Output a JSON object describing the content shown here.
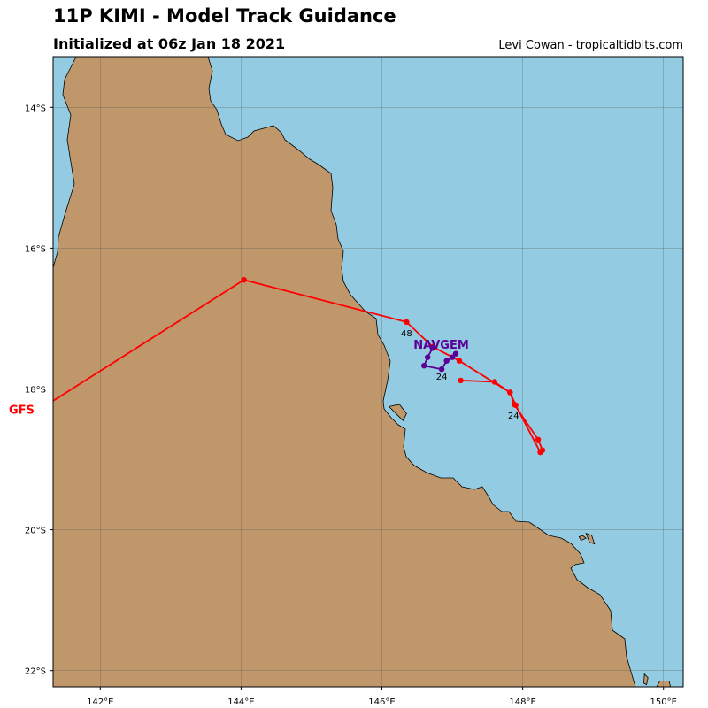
{
  "header": {
    "title": "11P KIMI - Model Track Guidance",
    "subtitle": "Initialized at 06z Jan 18 2021",
    "credit": "Levi Cowan - tropicaltidbits.com"
  },
  "map": {
    "lon_range": [
      141.33,
      150.28
    ],
    "lat_range": [
      -13.28,
      -22.23
    ],
    "lon_ticks": [
      142,
      144,
      146,
      148,
      150
    ],
    "lat_ticks": [
      -14,
      -16,
      -18,
      -20,
      -22
    ],
    "lon_tick_labels": [
      "142°E",
      "144°E",
      "146°E",
      "148°E",
      "150°E"
    ],
    "lat_tick_labels": [
      "14°S",
      "16°S",
      "18°S",
      "20°S",
      "22°S"
    ],
    "colors": {
      "ocean": "#93cce2",
      "land": "#c0976b",
      "coast": "#000000",
      "grid": "#555555"
    }
  },
  "tracks": [
    {
      "id": "gfs",
      "name": "GFS",
      "color": "#ff0000",
      "label_color": "#ff0000",
      "points": [
        [
          148.28,
          -18.87
        ],
        [
          148.22,
          -18.72
        ],
        [
          147.88,
          -18.22
        ],
        [
          147.82,
          -18.05
        ],
        [
          147.1,
          -17.6
        ],
        [
          146.72,
          -17.4
        ],
        [
          146.35,
          -17.05
        ],
        [
          144.04,
          -16.45
        ],
        [
          141.33,
          -18.17
        ]
      ]
    },
    {
      "id": "navgem",
      "name": "NAVGEM",
      "color": "#5a0096",
      "label_color": "#5a0096",
      "points": [
        [
          147.05,
          -17.5
        ],
        [
          147.0,
          -17.55
        ],
        [
          146.92,
          -17.6
        ],
        [
          146.85,
          -17.72
        ],
        [
          146.6,
          -17.67
        ],
        [
          146.65,
          -17.55
        ],
        [
          146.72,
          -17.42
        ]
      ]
    },
    {
      "id": "second",
      "name": "",
      "color": "#ff0000",
      "label_color": "#ff0000",
      "points": [
        [
          147.12,
          -17.88
        ],
        [
          147.6,
          -17.9
        ],
        [
          147.82,
          -18.05
        ],
        [
          147.9,
          -18.23
        ],
        [
          148.25,
          -18.9
        ]
      ]
    }
  ],
  "hour_labels": [
    {
      "text": "48",
      "lon": 146.35,
      "lat": -17.25
    },
    {
      "text": "24",
      "lon": 146.85,
      "lat": -17.87
    },
    {
      "text": "24",
      "lon": 147.87,
      "lat": -18.42
    }
  ],
  "model_labels": [
    {
      "text": "NAVGEM",
      "lon": 146.65,
      "lat": -17.43,
      "color": "#5a0096"
    },
    {
      "text": "GFS",
      "lon": 141.0,
      "lat": -18.35,
      "color": "#ff0000"
    }
  ],
  "islands": [
    {
      "name": "island",
      "points": [
        [
          146.1,
          -18.25
        ],
        [
          146.25,
          -18.22
        ],
        [
          146.35,
          -18.35
        ],
        [
          146.3,
          -18.45
        ],
        [
          146.2,
          -18.35
        ]
      ]
    },
    {
      "name": "island",
      "points": [
        [
          148.9,
          -20.05
        ],
        [
          148.98,
          -20.08
        ],
        [
          149.02,
          -20.2
        ],
        [
          148.95,
          -20.18
        ]
      ]
    },
    {
      "name": "island",
      "points": [
        [
          148.85,
          -20.08
        ],
        [
          148.9,
          -20.12
        ],
        [
          148.83,
          -20.15
        ],
        [
          148.8,
          -20.1
        ]
      ]
    },
    {
      "name": "island",
      "points": [
        [
          149.73,
          -22.05
        ],
        [
          149.78,
          -22.1
        ],
        [
          149.76,
          -22.2
        ],
        [
          149.72,
          -22.18
        ]
      ]
    },
    {
      "name": "island",
      "points": [
        [
          149.95,
          -22.15
        ],
        [
          150.08,
          -22.15
        ],
        [
          150.1,
          -22.23
        ],
        [
          149.9,
          -22.23
        ]
      ]
    }
  ]
}
